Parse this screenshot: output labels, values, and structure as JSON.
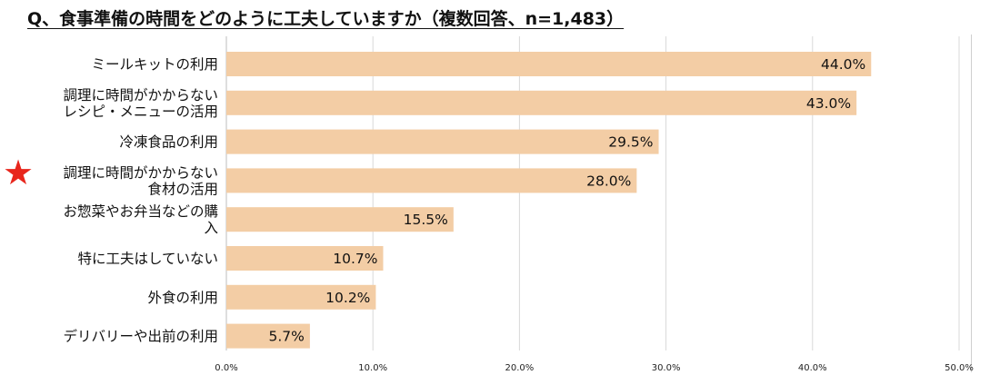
{
  "title": "Q、食事準備の時間をどのように工夫していますか（複数回答、n=1,483）",
  "accent_colors": {
    "bar": "#f3cda5",
    "star": "#e8261c",
    "grid": "#d9d9d9"
  },
  "highlight_icon": "star-icon",
  "chart_data": {
    "type": "bar",
    "orientation": "horizontal",
    "title": "Q、食事準備の時間をどのように工夫していますか（複数回答、n=1,483）",
    "categories": [
      [
        "ミールキットの利用"
      ],
      [
        "調理に時間がかからない",
        "レシピ・メニューの活用"
      ],
      [
        "冷凍食品の利用"
      ],
      [
        "調理に時間がかからない",
        "食材の活用"
      ],
      [
        "お惣菜やお弁当などの購",
        "入"
      ],
      [
        "特に工夫はしていない"
      ],
      [
        "外食の利用"
      ],
      [
        "デリバリーや出前の利用"
      ]
    ],
    "values": [
      44.0,
      43.0,
      29.5,
      28.0,
      15.5,
      10.7,
      10.2,
      5.7
    ],
    "value_labels": [
      "44.0%",
      "43.0%",
      "29.5%",
      "28.0%",
      "15.5%",
      "10.7%",
      "10.2%",
      "5.7%"
    ],
    "highlighted_index": 3,
    "xlim": [
      0,
      50
    ],
    "xticks": [
      "0.0%",
      "10.0%",
      "20.0%",
      "30.0%",
      "40.0%",
      "50.0%"
    ],
    "grid": true,
    "legend": "none"
  }
}
